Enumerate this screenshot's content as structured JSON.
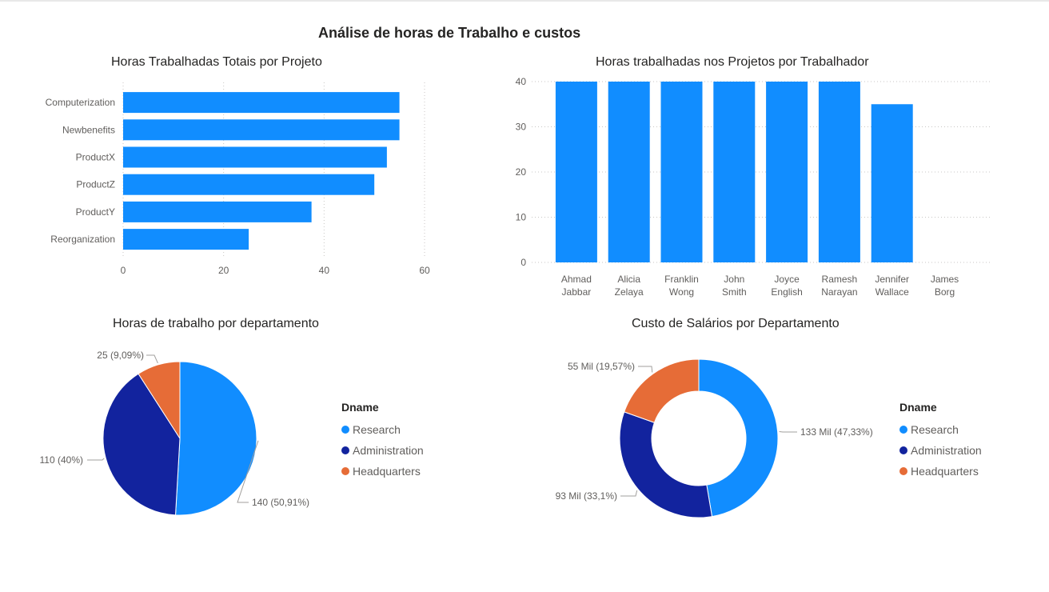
{
  "page": {
    "title": "Análise de horas de Trabalho e custos"
  },
  "chart_data": [
    {
      "id": "hours-by-project",
      "type": "bar",
      "orientation": "horizontal",
      "title": "Horas Trabalhadas Totais por Projeto",
      "categories": [
        "Computerization",
        "Newbenefits",
        "ProductX",
        "ProductZ",
        "ProductY",
        "Reorganization"
      ],
      "values": [
        55,
        55,
        52.5,
        50,
        37.5,
        25
      ],
      "xlim": [
        0,
        60
      ],
      "xticks": [
        0,
        20,
        40,
        60
      ],
      "grid": true,
      "color": "#118DFF"
    },
    {
      "id": "hours-by-worker",
      "type": "bar",
      "orientation": "vertical",
      "title": "Horas trabalhadas nos Projetos por Trabalhador",
      "categories": [
        [
          "Ahmad",
          "Jabbar"
        ],
        [
          "Alicia",
          "Zelaya"
        ],
        [
          "Franklin",
          "Wong"
        ],
        [
          "John",
          "Smith"
        ],
        [
          "Joyce",
          "English"
        ],
        [
          "Ramesh",
          "Narayan"
        ],
        [
          "Jennifer",
          "Wallace"
        ],
        [
          "James",
          "Borg"
        ]
      ],
      "values": [
        40,
        40,
        40,
        40,
        40,
        40,
        35,
        0
      ],
      "ylim": [
        0,
        40
      ],
      "yticks": [
        0,
        10,
        20,
        30,
        40
      ],
      "grid": true,
      "color": "#118DFF"
    },
    {
      "id": "hours-by-department",
      "type": "pie",
      "title": "Horas de trabalho por departamento",
      "legend_title": "Dname",
      "legend_position": "right",
      "slices": [
        {
          "name": "Research",
          "value": 140,
          "label": "140 (50,91%)",
          "color": "#118DFF"
        },
        {
          "name": "Administration",
          "value": 110,
          "label": "110 (40%)",
          "color": "#12239E"
        },
        {
          "name": "Headquarters",
          "value": 25,
          "label": "25 (9,09%)",
          "color": "#E66C37"
        }
      ]
    },
    {
      "id": "salary-by-department",
      "type": "pie",
      "variant": "donut",
      "title": "Custo de Salários por Departamento",
      "legend_title": "Dname",
      "legend_position": "right",
      "slices": [
        {
          "name": "Research",
          "value": 47.33,
          "label": "133 Mil (47,33%)",
          "color": "#118DFF"
        },
        {
          "name": "Administration",
          "value": 33.1,
          "label": "93 Mil (33,1%)",
          "color": "#12239E"
        },
        {
          "name": "Headquarters",
          "value": 19.57,
          "label": "55 Mil (19,57%)",
          "color": "#E66C37"
        }
      ]
    }
  ]
}
